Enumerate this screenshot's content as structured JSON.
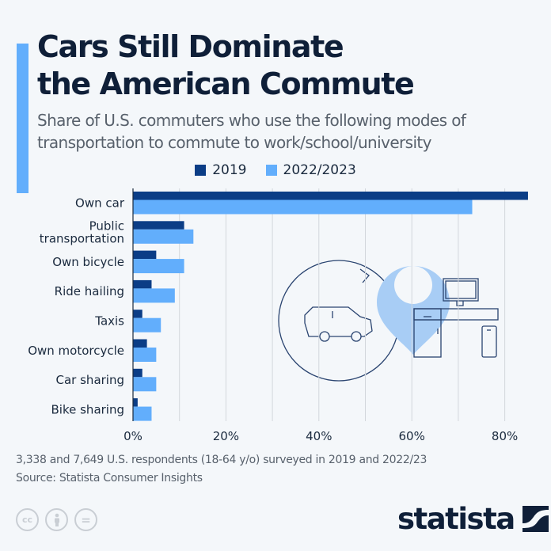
{
  "header": {
    "title_line1": "Cars Still Dominate",
    "title_line2": "the American Commute",
    "subtitle_line1": "Share of U.S. commuters who use the following modes of",
    "subtitle_line2": "transportation to commute to work/school/university"
  },
  "colors": {
    "series_2019": "#0b3d86",
    "series_2022": "#62aefc",
    "accent": "#62aefc",
    "text_dark": "#0f1f38",
    "text_muted": "#58616c",
    "grid": "#d3d7dc"
  },
  "chart_data": {
    "type": "bar",
    "orientation": "horizontal",
    "title": "Cars Still Dominate the American Commute",
    "subtitle": "Share of U.S. commuters who use the following modes of transportation to commute to work/school/university",
    "categories": [
      "Own car",
      "Public transportation",
      "Own bicycle",
      "Ride hailing",
      "Taxis",
      "Own motorcycle",
      "Car sharing",
      "Bike sharing"
    ],
    "category_lines": [
      [
        "Own car"
      ],
      [
        "Public",
        "transportation"
      ],
      [
        "Own bicycle"
      ],
      [
        "Ride hailing"
      ],
      [
        "Taxis"
      ],
      [
        "Own motorcycle"
      ],
      [
        "Car sharing"
      ],
      [
        "Bike sharing"
      ]
    ],
    "series": [
      {
        "name": "2019",
        "values": [
          85,
          11,
          5,
          4,
          2,
          3,
          2,
          1
        ]
      },
      {
        "name": "2022/2023",
        "values": [
          73,
          13,
          11,
          9,
          6,
          5,
          5,
          4
        ]
      }
    ],
    "xlabel": "",
    "ylabel": "",
    "xlim": [
      0,
      85
    ],
    "x_ticks": [
      0,
      20,
      40,
      60,
      80
    ],
    "x_tick_labels": [
      "0%",
      "20%",
      "40%",
      "60%",
      "80%"
    ],
    "gridlines_every": 10,
    "grid": true,
    "legend_position": "top-center",
    "unit": "%"
  },
  "legend": [
    {
      "label": "2019"
    },
    {
      "label": "2022/2023"
    }
  ],
  "footer": {
    "note": "3,338 and 7,649 U.S. respondents (18-64 y/o) surveyed in 2019 and 2022/23",
    "source": "Source: Statista Consumer Insights"
  },
  "license_icons": [
    "cc-icon",
    "attribution-icon",
    "no-derivatives-icon"
  ],
  "license_text": {
    "cc": "cc",
    "nd": "="
  },
  "brand": {
    "name": "statista"
  }
}
